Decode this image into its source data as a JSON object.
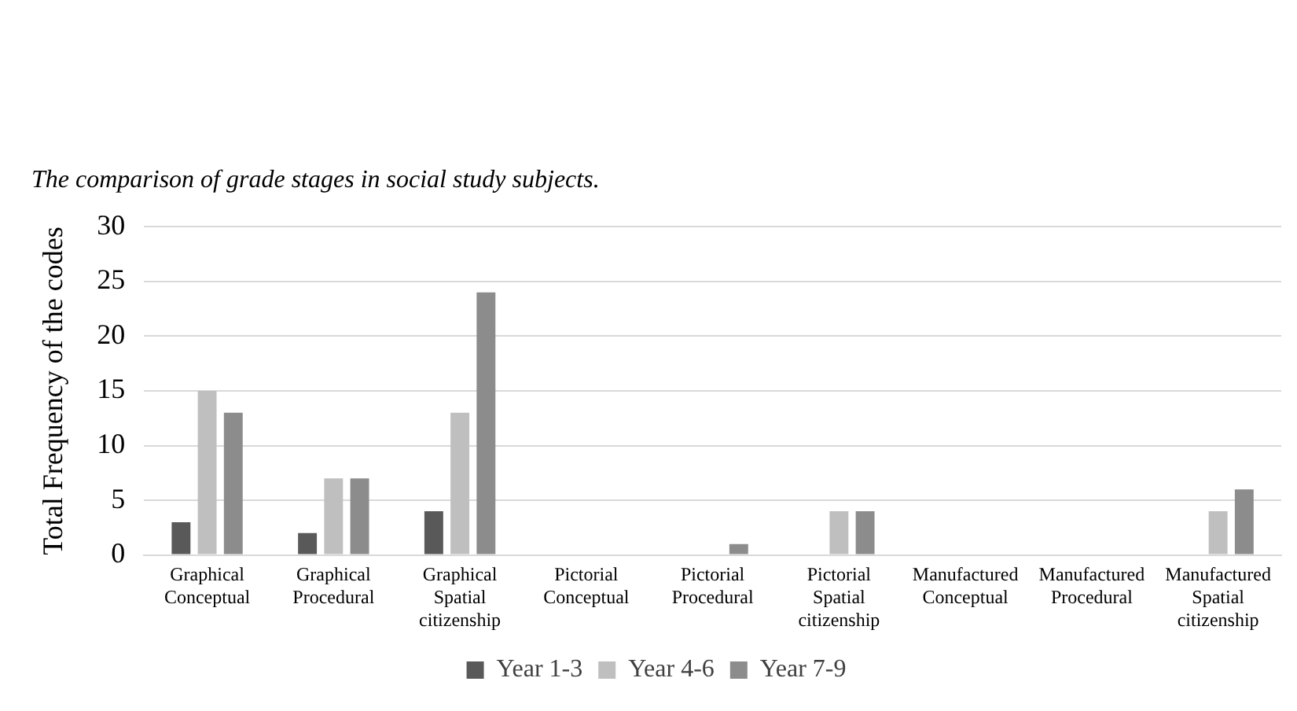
{
  "chart_data": {
    "type": "bar",
    "title": "The comparison of grade stages in social study subjects.",
    "ylabel": "Total Frequency of the codes",
    "categories": [
      "Graphical Conceptual",
      "Graphical Procedural",
      "Graphical Spatial citizenship",
      "Pictorial Conceptual",
      "Pictorial Procedural",
      "Pictorial Spatial citizenship",
      "Manufactured Conceptual",
      "Manufactured Procedural",
      "Manufactured Spatial citizenship"
    ],
    "series": [
      {
        "name": "Year 1-3",
        "color": "#595959",
        "values": [
          3,
          2,
          4,
          0,
          0,
          0,
          0,
          0,
          0
        ]
      },
      {
        "name": "Year 4-6",
        "color": "#bfbfbf",
        "values": [
          15,
          7,
          13,
          0,
          0,
          4,
          0,
          0,
          4
        ]
      },
      {
        "name": "Year 7-9",
        "color": "#8c8c8c",
        "values": [
          13,
          7,
          24,
          0,
          1,
          4,
          0,
          0,
          6
        ]
      }
    ],
    "ylim": [
      0,
      30
    ],
    "yticks": [
      0,
      5,
      10,
      15,
      20,
      25,
      30
    ],
    "grid": "y",
    "legend": "bottom"
  }
}
